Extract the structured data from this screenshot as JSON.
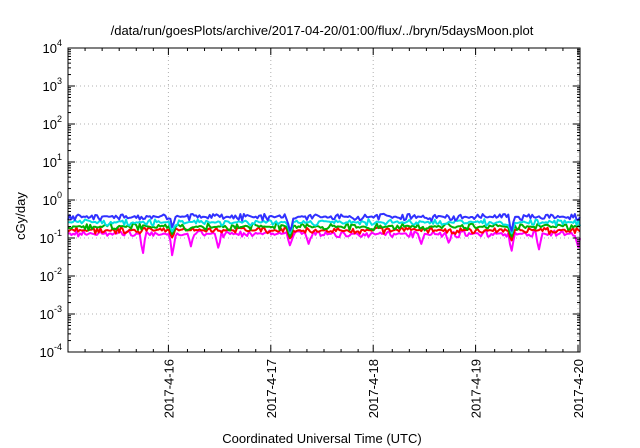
{
  "chart_data": {
    "type": "line",
    "title": "/data/run/goesPlots/archive/2017-04-20/01:00/flux/../bryn/5daysMoon.plot",
    "xlabel": "Coordinated Universal Time (UTC)",
    "ylabel": "cGy/day",
    "y_scale": "log",
    "ylim": [
      0.0001,
      10000
    ],
    "xlim": [
      "2017-04-15 01:00",
      "2017-04-20 01:00"
    ],
    "grid": true,
    "x_ticks": [
      "2017-4-16",
      "2017-4-17",
      "2017-4-18",
      "2017-4-19",
      "2017-4-20"
    ],
    "y_ticks": [
      {
        "base": "10",
        "exp": "4"
      },
      {
        "base": "10",
        "exp": "3"
      },
      {
        "base": "10",
        "exp": "2"
      },
      {
        "base": "10",
        "exp": "1"
      },
      {
        "base": "10",
        "exp": "0"
      },
      {
        "base": "10",
        "exp": "-1"
      },
      {
        "base": "10",
        "exp": "-2"
      },
      {
        "base": "10",
        "exp": "-3"
      },
      {
        "base": "10",
        "exp": "-4"
      }
    ],
    "series": [
      {
        "color": "#ff00ff",
        "baseline": 0.13,
        "dips": [
          {
            "x": 0.73,
            "y": 0.035
          },
          {
            "x": 1.02,
            "y": 0.03
          },
          {
            "x": 1.2,
            "y": 0.06
          },
          {
            "x": 1.47,
            "y": 0.05
          },
          {
            "x": 2.17,
            "y": 0.06
          },
          {
            "x": 2.35,
            "y": 0.07
          },
          {
            "x": 3.45,
            "y": 0.07
          },
          {
            "x": 3.72,
            "y": 0.07
          },
          {
            "x": 4.33,
            "y": 0.04
          },
          {
            "x": 4.6,
            "y": 0.05
          },
          {
            "x": 4.98,
            "y": 0.05
          }
        ]
      },
      {
        "color": "#ff0000",
        "baseline": 0.16,
        "dips": [
          {
            "x": 1.02,
            "y": 0.1
          },
          {
            "x": 2.17,
            "y": 0.09
          },
          {
            "x": 4.33,
            "y": 0.08
          }
        ]
      },
      {
        "color": "#00b000",
        "baseline": 0.2,
        "dips": [
          {
            "x": 1.02,
            "y": 0.12
          },
          {
            "x": 2.17,
            "y": 0.1
          },
          {
            "x": 4.33,
            "y": 0.1
          }
        ]
      },
      {
        "color": "#00e0e0",
        "baseline": 0.26,
        "dips": [
          {
            "x": 1.02,
            "y": 0.14
          },
          {
            "x": 2.17,
            "y": 0.12
          },
          {
            "x": 4.33,
            "y": 0.12
          }
        ]
      },
      {
        "color": "#3030ff",
        "baseline": 0.36,
        "dips": [
          {
            "x": 1.02,
            "y": 0.18
          },
          {
            "x": 2.17,
            "y": 0.14
          },
          {
            "x": 4.33,
            "y": 0.14
          }
        ]
      }
    ]
  }
}
